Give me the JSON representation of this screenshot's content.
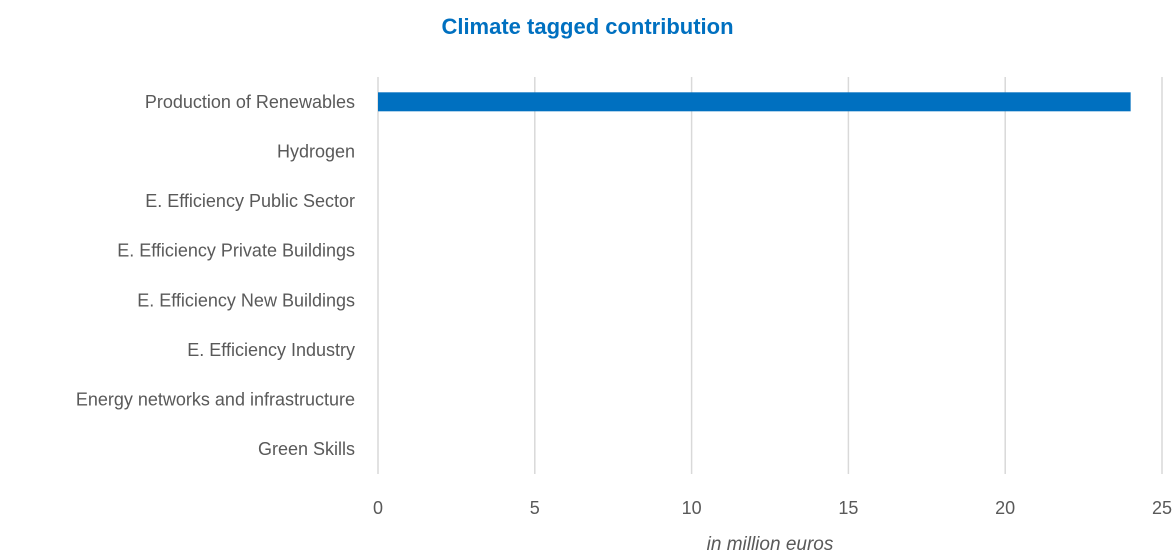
{
  "chart_data": {
    "type": "bar",
    "orientation": "horizontal",
    "title": "Climate tagged contribution",
    "xlabel": "in million euros",
    "ylabel": "",
    "categories": [
      "Production of Renewables",
      "Hydrogen",
      "E. Efficiency Public Sector",
      "E. Efficiency Private Buildings",
      "E. Efficiency New Buildings",
      "E. Efficiency Industry",
      "Energy networks and infrastructure",
      "Green Skills"
    ],
    "values": [
      24,
      0,
      0,
      0,
      0,
      0,
      0,
      0
    ],
    "xlim": [
      0,
      25
    ],
    "xticks": [
      0,
      5,
      10,
      15,
      20,
      25
    ],
    "grid": "vertical",
    "legend": "none",
    "bar_color": "#0070c0",
    "grid_color": "#d9d9d9"
  }
}
